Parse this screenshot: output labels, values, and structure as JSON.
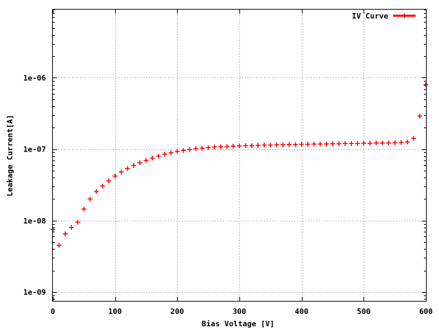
{
  "chart_data": {
    "type": "scatter",
    "xlabel": "Bias Voltage [V]",
    "ylabel": "Leakage Current[A]",
    "xlim": [
      0,
      600
    ],
    "ylim": [
      7.5e-10,
      9e-06
    ],
    "yscale": "log",
    "grid": true,
    "legend_position": "top-right",
    "x_ticks": [
      0,
      100,
      200,
      300,
      400,
      500,
      600
    ],
    "x_tick_labels": [
      "0",
      "100",
      "200",
      "300",
      "400",
      "500",
      "600"
    ],
    "y_ticks": [
      1e-09,
      1e-08,
      1e-07,
      1e-06
    ],
    "y_tick_labels": [
      "1e-09",
      "1e-08",
      "1e-07",
      "1e-06"
    ],
    "series": [
      {
        "name": "IV Curve",
        "color": "#ff0000",
        "marker": "plus",
        "x": [
          0,
          10,
          20,
          30,
          40,
          50,
          60,
          70,
          80,
          90,
          100,
          110,
          120,
          130,
          140,
          150,
          160,
          170,
          180,
          190,
          200,
          210,
          220,
          230,
          240,
          250,
          260,
          270,
          280,
          290,
          300,
          310,
          320,
          330,
          340,
          350,
          360,
          370,
          380,
          390,
          400,
          410,
          420,
          430,
          440,
          450,
          460,
          470,
          480,
          490,
          500,
          510,
          520,
          530,
          540,
          550,
          560,
          570,
          580,
          590,
          600
        ],
        "y": [
          7.5e-09,
          4.5e-09,
          6.5e-09,
          8e-09,
          9.5e-09,
          1.45e-08,
          2e-08,
          2.55e-08,
          3.05e-08,
          3.6e-08,
          4.2e-08,
          4.8e-08,
          5.35e-08,
          5.9e-08,
          6.45e-08,
          6.95e-08,
          7.5e-08,
          8e-08,
          8.5e-08,
          8.9e-08,
          9.3e-08,
          9.6e-08,
          9.85e-08,
          1.01e-07,
          1.03e-07,
          1.05e-07,
          1.07e-07,
          1.08e-07,
          1.09e-07,
          1.1e-07,
          1.11e-07,
          1.12e-07,
          1.12e-07,
          1.13e-07,
          1.14e-07,
          1.14e-07,
          1.15e-07,
          1.15e-07,
          1.16e-07,
          1.16e-07,
          1.17e-07,
          1.17e-07,
          1.18e-07,
          1.18e-07,
          1.18e-07,
          1.19e-07,
          1.19e-07,
          1.2e-07,
          1.2e-07,
          1.2e-07,
          1.21e-07,
          1.21e-07,
          1.22e-07,
          1.22e-07,
          1.22e-07,
          1.23e-07,
          1.24e-07,
          1.26e-07,
          1.42e-07,
          2.9e-07,
          8e-07
        ]
      }
    ]
  }
}
